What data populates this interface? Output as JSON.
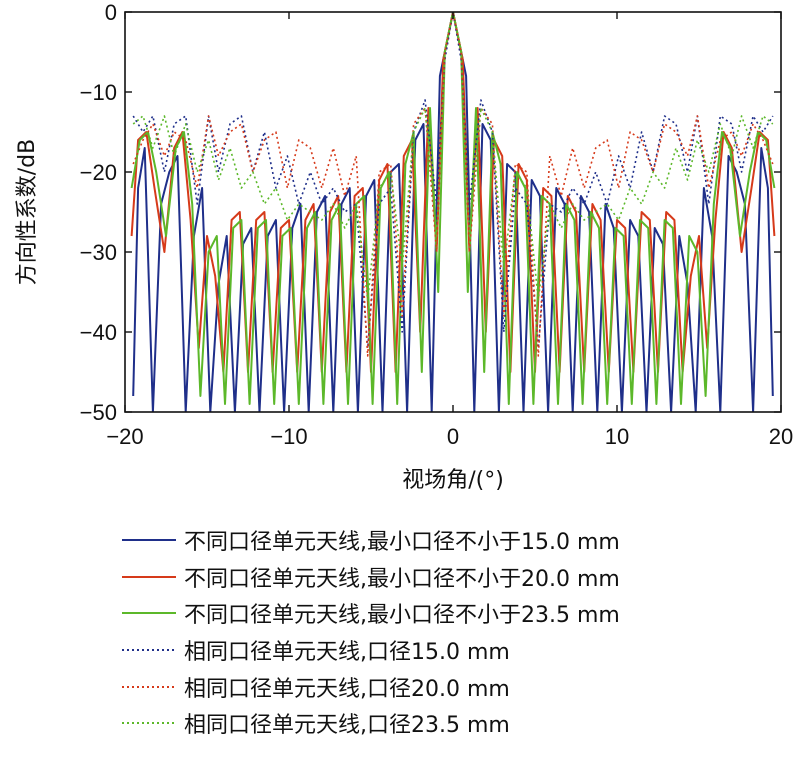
{
  "chart_data": {
    "type": "line",
    "title": "",
    "xlabel": "视场角/(°)",
    "ylabel": "方向性系数/dB",
    "xlim": [
      -20,
      20
    ],
    "ylim": [
      -50,
      0
    ],
    "xticks": [
      -20,
      -10,
      0,
      10,
      20
    ],
    "yticks": [
      0,
      -10,
      -20,
      -30,
      -40,
      -50
    ],
    "xtick_labels": [
      "−20",
      "−10",
      "0",
      "10",
      "20"
    ],
    "ytick_labels": [
      "0",
      "−10",
      "−20",
      "−30",
      "−40",
      "−50"
    ],
    "grid": false,
    "legend_position": "below",
    "series": [
      {
        "name": "不同口径单元天线,最小口径不小于15.0 mm",
        "color": "#1f2f8a",
        "style": "solid",
        "x": [
          -19.5,
          -19.2,
          -18.8,
          -18.3,
          -17.8,
          -17.3,
          -16.8,
          -16.3,
          -15.8,
          -15.3,
          -14.8,
          -14.3,
          -13.8,
          -13.3,
          -12.8,
          -12.3,
          -11.8,
          -11.3,
          -10.8,
          -10.3,
          -9.8,
          -9.3,
          -8.8,
          -8.3,
          -7.8,
          -7.3,
          -6.8,
          -6.3,
          -5.8,
          -5.3,
          -4.8,
          -4.3,
          -3.8,
          -3.3,
          -2.8,
          -2.3,
          -1.8,
          -1.3,
          -0.8,
          0.0,
          0.8,
          1.3,
          1.8,
          2.3,
          2.8,
          3.3,
          3.8,
          4.3,
          4.8,
          5.3,
          5.8,
          6.3,
          6.8,
          7.3,
          7.8,
          8.3,
          8.8,
          9.3,
          9.8,
          10.3,
          10.8,
          11.3,
          11.8,
          12.3,
          12.8,
          13.3,
          13.8,
          14.3,
          14.8,
          15.3,
          15.8,
          16.3,
          16.8,
          17.3,
          17.8,
          18.3,
          18.8,
          19.2,
          19.5
        ],
        "y": [
          -48,
          -22,
          -17,
          -50,
          -24,
          -20,
          -18,
          -50,
          -28,
          -22,
          -50,
          -34,
          -28,
          -50,
          -29,
          -27,
          -50,
          -28,
          -26,
          -50,
          -27,
          -24,
          -50,
          -25,
          -23,
          -50,
          -24,
          -22,
          -50,
          -23,
          -21,
          -50,
          -20,
          -19,
          -50,
          -16,
          -14,
          -50,
          -8,
          0,
          -8,
          -50,
          -14,
          -16,
          -50,
          -19,
          -20,
          -50,
          -21,
          -23,
          -50,
          -22,
          -24,
          -50,
          -23,
          -25,
          -50,
          -24,
          -27,
          -50,
          -26,
          -28,
          -50,
          -27,
          -29,
          -50,
          -28,
          -34,
          -50,
          -22,
          -28,
          -50,
          -18,
          -20,
          -24,
          -50,
          -17,
          -22,
          -48
        ]
      },
      {
        "name": "不同口径单元天线,最小口径不小于20.0 mm",
        "color": "#d63a1a",
        "style": "solid",
        "x": [
          -19.6,
          -19.2,
          -18.7,
          -18.2,
          -17.6,
          -17.0,
          -16.5,
          -16.0,
          -15.5,
          -15.0,
          -14.5,
          -14.0,
          -13.5,
          -13.0,
          -12.5,
          -12.0,
          -11.5,
          -11.0,
          -10.5,
          -10.0,
          -9.5,
          -9.0,
          -8.5,
          -8.0,
          -7.5,
          -7.0,
          -6.5,
          -6.0,
          -5.5,
          -5.0,
          -4.5,
          -4.0,
          -3.5,
          -3.0,
          -2.5,
          -2.0,
          -1.5,
          -1.0,
          -0.6,
          0.0,
          0.6,
          1.0,
          1.5,
          2.0,
          2.5,
          3.0,
          3.5,
          4.0,
          4.5,
          5.0,
          5.5,
          6.0,
          6.5,
          7.0,
          7.5,
          8.0,
          8.5,
          9.0,
          9.5,
          10.0,
          10.5,
          11.0,
          11.5,
          12.0,
          12.5,
          13.0,
          13.5,
          14.0,
          14.5,
          15.0,
          15.5,
          16.0,
          16.5,
          17.0,
          17.6,
          18.2,
          18.7,
          19.2,
          19.6
        ],
        "y": [
          -28,
          -16,
          -15,
          -22,
          -30,
          -17,
          -15,
          -26,
          -42,
          -28,
          -33,
          -45,
          -26,
          -25,
          -45,
          -26,
          -25,
          -45,
          -27,
          -26,
          -45,
          -26,
          -24,
          -45,
          -25,
          -23,
          -45,
          -23,
          -22,
          -45,
          -21,
          -19,
          -45,
          -18,
          -16,
          -40,
          -12,
          -30,
          -6,
          0,
          -6,
          -30,
          -12,
          -40,
          -16,
          -18,
          -45,
          -19,
          -21,
          -45,
          -22,
          -23,
          -45,
          -23,
          -25,
          -45,
          -24,
          -26,
          -45,
          -26,
          -27,
          -45,
          -25,
          -26,
          -45,
          -25,
          -26,
          -45,
          -33,
          -28,
          -42,
          -26,
          -15,
          -17,
          -30,
          -22,
          -15,
          -16,
          -28
        ]
      },
      {
        "name": "不同口径单元天线,最小口径不小于23.5 mm",
        "color": "#5cb82a",
        "style": "solid",
        "x": [
          -19.6,
          -19.1,
          -18.6,
          -18.1,
          -17.5,
          -16.9,
          -16.4,
          -15.9,
          -15.4,
          -14.9,
          -14.4,
          -13.9,
          -13.4,
          -12.9,
          -12.4,
          -11.9,
          -11.4,
          -10.9,
          -10.4,
          -9.9,
          -9.4,
          -8.9,
          -8.4,
          -7.9,
          -7.4,
          -6.9,
          -6.4,
          -5.9,
          -5.4,
          -4.9,
          -4.4,
          -3.9,
          -3.4,
          -2.9,
          -2.4,
          -1.9,
          -1.4,
          -0.9,
          -0.5,
          0.0,
          0.5,
          0.9,
          1.4,
          1.9,
          2.4,
          2.9,
          3.4,
          3.9,
          4.4,
          4.9,
          5.4,
          5.9,
          6.4,
          6.9,
          7.4,
          7.9,
          8.4,
          8.9,
          9.4,
          9.9,
          10.4,
          10.9,
          11.4,
          11.9,
          12.4,
          12.9,
          13.4,
          13.9,
          14.4,
          14.9,
          15.4,
          15.9,
          16.4,
          16.9,
          17.5,
          18.1,
          18.6,
          19.1,
          19.6
        ],
        "y": [
          -22,
          -16,
          -15,
          -20,
          -28,
          -17,
          -15,
          -24,
          -48,
          -30,
          -28,
          -49,
          -27,
          -26,
          -49,
          -27,
          -26,
          -49,
          -28,
          -27,
          -49,
          -27,
          -25,
          -49,
          -26,
          -24,
          -49,
          -24,
          -23,
          -49,
          -22,
          -20,
          -49,
          -19,
          -15,
          -45,
          -12,
          -35,
          -5,
          0,
          -5,
          -35,
          -12,
          -45,
          -15,
          -19,
          -49,
          -20,
          -22,
          -49,
          -23,
          -24,
          -49,
          -24,
          -26,
          -49,
          -25,
          -27,
          -49,
          -27,
          -28,
          -49,
          -26,
          -27,
          -49,
          -26,
          -27,
          -49,
          -28,
          -30,
          -48,
          -24,
          -15,
          -17,
          -28,
          -20,
          -15,
          -16,
          -22
        ]
      },
      {
        "name": "相同口径单元天线,口径15.0 mm",
        "color": "#1f2f8a",
        "style": "dotted",
        "x": [
          -19.5,
          -18.9,
          -18.3,
          -17.6,
          -17.0,
          -16.3,
          -15.6,
          -14.9,
          -14.3,
          -13.6,
          -12.9,
          -12.2,
          -11.5,
          -10.8,
          -10.1,
          -9.4,
          -8.7,
          -8.0,
          -7.3,
          -6.6,
          -5.9,
          -5.2,
          -4.5,
          -3.8,
          -3.1,
          -2.4,
          -1.7,
          -1.0,
          -0.5,
          0.0,
          0.5,
          1.0,
          1.7,
          2.4,
          3.1,
          3.8,
          4.5,
          5.2,
          5.9,
          6.6,
          7.3,
          8.0,
          8.7,
          9.4,
          10.1,
          10.8,
          11.5,
          12.2,
          12.9,
          13.6,
          14.3,
          14.9,
          15.6,
          16.3,
          17.0,
          17.6,
          18.3,
          18.9,
          19.5
        ],
        "y": [
          -13,
          -15,
          -13,
          -20,
          -14,
          -13,
          -24,
          -13,
          -20,
          -14,
          -13,
          -20,
          -15,
          -22,
          -18,
          -24,
          -20,
          -24,
          -22,
          -25,
          -24,
          -42,
          -24,
          -22,
          -40,
          -15,
          -11,
          -24,
          -6,
          0,
          -6,
          -24,
          -11,
          -15,
          -40,
          -22,
          -24,
          -42,
          -24,
          -25,
          -22,
          -24,
          -20,
          -24,
          -18,
          -22,
          -15,
          -20,
          -13,
          -14,
          -20,
          -13,
          -24,
          -13,
          -14,
          -20,
          -13,
          -15,
          -13
        ]
      },
      {
        "name": "相同口径单元天线,口径20.0 mm",
        "color": "#d63a1a",
        "style": "dotted",
        "x": [
          -19.5,
          -18.9,
          -18.3,
          -17.6,
          -17.0,
          -16.3,
          -15.6,
          -14.9,
          -14.3,
          -13.6,
          -12.9,
          -12.2,
          -11.5,
          -10.8,
          -10.1,
          -9.4,
          -8.7,
          -8.0,
          -7.3,
          -6.6,
          -5.9,
          -5.2,
          -4.5,
          -3.8,
          -3.1,
          -2.4,
          -1.7,
          -1.0,
          -0.5,
          0.0,
          0.5,
          1.0,
          1.7,
          2.4,
          3.1,
          3.8,
          4.5,
          5.2,
          5.9,
          6.6,
          7.3,
          8.0,
          8.7,
          9.4,
          10.1,
          10.8,
          11.5,
          12.2,
          12.9,
          13.6,
          14.3,
          14.9,
          15.6,
          16.3,
          17.0,
          17.6,
          18.3,
          18.9,
          19.5
        ],
        "y": [
          -19,
          -16,
          -14,
          -18,
          -15,
          -16,
          -22,
          -13,
          -18,
          -15,
          -14,
          -20,
          -16,
          -15,
          -22,
          -16,
          -17,
          -22,
          -17,
          -23,
          -18,
          -43,
          -20,
          -19,
          -38,
          -14,
          -12,
          -30,
          -5,
          0,
          -5,
          -30,
          -12,
          -14,
          -38,
          -19,
          -20,
          -43,
          -18,
          -23,
          -17,
          -22,
          -17,
          -16,
          -22,
          -15,
          -16,
          -20,
          -14,
          -15,
          -18,
          -13,
          -22,
          -16,
          -15,
          -18,
          -14,
          -16,
          -19
        ]
      },
      {
        "name": "相同口径单元天线,口径23.5 mm",
        "color": "#5cb82a",
        "style": "dotted",
        "x": [
          -19.5,
          -18.9,
          -18.3,
          -17.6,
          -17.0,
          -16.3,
          -15.6,
          -14.9,
          -14.3,
          -13.6,
          -12.9,
          -12.2,
          -11.5,
          -10.8,
          -10.1,
          -9.4,
          -8.7,
          -8.0,
          -7.3,
          -6.6,
          -5.9,
          -5.2,
          -4.5,
          -3.8,
          -3.1,
          -2.4,
          -1.7,
          -1.0,
          -0.5,
          0.0,
          0.5,
          1.0,
          1.7,
          2.4,
          3.1,
          3.8,
          4.5,
          5.2,
          5.9,
          6.6,
          7.3,
          8.0,
          8.7,
          9.4,
          10.1,
          10.8,
          11.5,
          12.2,
          12.9,
          13.6,
          14.3,
          14.9,
          15.6,
          16.3,
          17.0,
          17.6,
          18.3,
          18.9,
          19.5
        ],
        "y": [
          -14,
          -13,
          -17,
          -13,
          -18,
          -14,
          -20,
          -16,
          -21,
          -17,
          -22,
          -20,
          -24,
          -22,
          -26,
          -24,
          -25,
          -26,
          -24,
          -27,
          -24,
          -36,
          -22,
          -20,
          -32,
          -15,
          -12,
          -28,
          -5,
          0,
          -5,
          -28,
          -12,
          -15,
          -32,
          -20,
          -22,
          -36,
          -24,
          -27,
          -24,
          -26,
          -25,
          -24,
          -26,
          -22,
          -24,
          -20,
          -22,
          -17,
          -21,
          -16,
          -20,
          -14,
          -18,
          -13,
          -17,
          -13,
          -14
        ]
      }
    ]
  }
}
